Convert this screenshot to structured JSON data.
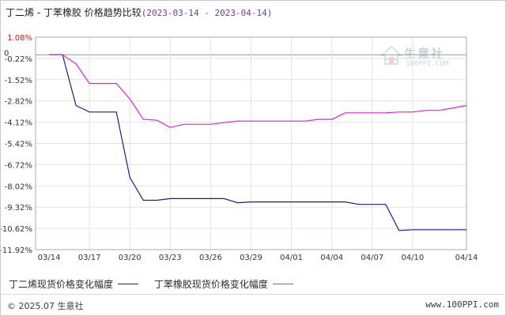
{
  "title": {
    "main": "丁二烯 - 丁苯橡胶 价格趋势比较",
    "range": "(2023-03-14 - 2023-04-14)"
  },
  "watermark": {
    "name": "生意社",
    "url": "100PPI.COM"
  },
  "chart_data": {
    "type": "line",
    "ylim": [
      -11.92,
      1.08
    ],
    "y_ticks": [
      "1.08%",
      "-0.22%",
      "-1.52%",
      "-2.82%",
      "-4.12%",
      "-5.42%",
      "-6.72%",
      "-8.02%",
      "-9.32%",
      "-10.62%",
      "-11.92%"
    ],
    "zero_label": "0",
    "x_ticks": [
      "03/14",
      "03/17",
      "03/20",
      "03/23",
      "03/26",
      "03/29",
      "04/01",
      "04/04",
      "04/07",
      "04/10",
      "04/14"
    ],
    "x_domain": [
      "2023-03-13",
      "2023-04-14"
    ],
    "grid": true,
    "legend_position": "bottom-left",
    "series": [
      {
        "name": "丁二烯现货价格变化幅度",
        "color": "#1c1c8c",
        "points": [
          [
            "2023-03-14",
            0
          ],
          [
            "2023-03-15",
            0
          ],
          [
            "2023-03-16",
            -3.1
          ],
          [
            "2023-03-17",
            -3.5
          ],
          [
            "2023-03-18",
            -3.5
          ],
          [
            "2023-03-19",
            -3.5
          ],
          [
            "2023-03-20",
            -7.5
          ],
          [
            "2023-03-21",
            -8.9
          ],
          [
            "2023-03-22",
            -8.9
          ],
          [
            "2023-03-23",
            -8.8
          ],
          [
            "2023-03-24",
            -8.8
          ],
          [
            "2023-03-25",
            -8.8
          ],
          [
            "2023-03-26",
            -8.8
          ],
          [
            "2023-03-27",
            -8.8
          ],
          [
            "2023-03-28",
            -9.05
          ],
          [
            "2023-03-29",
            -9.0
          ],
          [
            "2023-03-30",
            -9.0
          ],
          [
            "2023-03-31",
            -9.0
          ],
          [
            "2023-04-01",
            -9.0
          ],
          [
            "2023-04-02",
            -9.0
          ],
          [
            "2023-04-03",
            -9.0
          ],
          [
            "2023-04-04",
            -9.0
          ],
          [
            "2023-04-05",
            -9.0
          ],
          [
            "2023-04-06",
            -9.15
          ],
          [
            "2023-04-07",
            -9.15
          ],
          [
            "2023-04-08",
            -9.15
          ],
          [
            "2023-04-09",
            -10.75
          ],
          [
            "2023-04-10",
            -10.7
          ],
          [
            "2023-04-11",
            -10.7
          ],
          [
            "2023-04-12",
            -10.7
          ],
          [
            "2023-04-13",
            -10.7
          ],
          [
            "2023-04-14",
            -10.7
          ]
        ]
      },
      {
        "name": "丁苯橡胶现货价格变化幅度",
        "color": "#e020e0",
        "points": [
          [
            "2023-03-14",
            0
          ],
          [
            "2023-03-15",
            0
          ],
          [
            "2023-03-16",
            -0.55
          ],
          [
            "2023-03-17",
            -1.75
          ],
          [
            "2023-03-18",
            -1.75
          ],
          [
            "2023-03-19",
            -1.75
          ],
          [
            "2023-03-20",
            -2.7
          ],
          [
            "2023-03-21",
            -3.95
          ],
          [
            "2023-03-22",
            -4.0
          ],
          [
            "2023-03-23",
            -4.45
          ],
          [
            "2023-03-24",
            -4.25
          ],
          [
            "2023-03-25",
            -4.25
          ],
          [
            "2023-03-26",
            -4.25
          ],
          [
            "2023-03-27",
            -4.15
          ],
          [
            "2023-03-28",
            -4.05
          ],
          [
            "2023-03-29",
            -4.05
          ],
          [
            "2023-03-30",
            -4.05
          ],
          [
            "2023-03-31",
            -4.05
          ],
          [
            "2023-04-01",
            -4.05
          ],
          [
            "2023-04-02",
            -4.05
          ],
          [
            "2023-04-03",
            -3.95
          ],
          [
            "2023-04-04",
            -3.95
          ],
          [
            "2023-04-05",
            -3.55
          ],
          [
            "2023-04-06",
            -3.55
          ],
          [
            "2023-04-07",
            -3.55
          ],
          [
            "2023-04-08",
            -3.55
          ],
          [
            "2023-04-09",
            -3.5
          ],
          [
            "2023-04-10",
            -3.5
          ],
          [
            "2023-04-11",
            -3.4
          ],
          [
            "2023-04-12",
            -3.4
          ],
          [
            "2023-04-13",
            -3.25
          ],
          [
            "2023-04-14",
            -3.1
          ]
        ]
      }
    ]
  },
  "footer": {
    "copyright": "© 2025.07 生意社",
    "site": "www.100PPI.com"
  }
}
